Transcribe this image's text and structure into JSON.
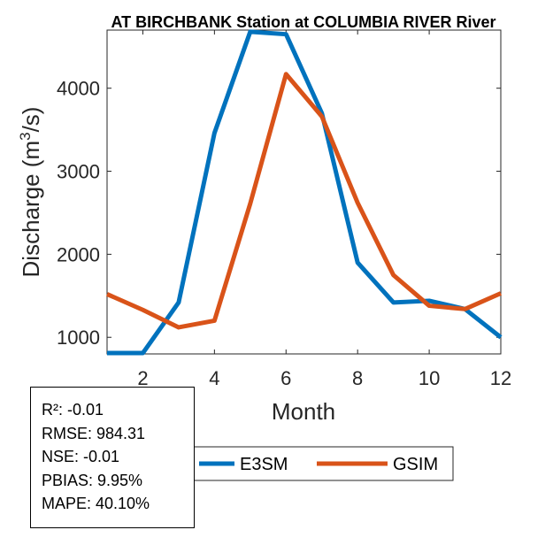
{
  "chart_data": {
    "type": "line",
    "title": "AT BIRCHBANK  Station at  COLUMBIA RIVER  River",
    "xlabel": "Month",
    "ylabel_main": "Discharge (m",
    "ylabel_sup": "3",
    "ylabel_tail": "/s)",
    "xlim": [
      1,
      12
    ],
    "ylim": [
      800,
      4700
    ],
    "x_ticks": [
      2,
      4,
      6,
      8,
      10,
      12
    ],
    "y_ticks": [
      1000,
      2000,
      3000,
      4000
    ],
    "x": [
      1,
      2,
      3,
      4,
      5,
      6,
      7,
      8,
      9,
      10,
      11,
      12
    ],
    "series": [
      {
        "name": "E3SM",
        "color": "#0072BD",
        "values": [
          810,
          810,
          1420,
          3460,
          4680,
          4650,
          3700,
          1900,
          1420,
          1440,
          1340,
          1000
        ]
      },
      {
        "name": "GSIM",
        "color": "#D95319",
        "values": [
          1520,
          1330,
          1120,
          1200,
          2610,
          4170,
          3660,
          2620,
          1750,
          1380,
          1340,
          1530
        ]
      }
    ],
    "grid": false,
    "legend_position": "bottom"
  },
  "stats": {
    "r2": "R²: -0.01",
    "rmse": "RMSE: 984.31",
    "nse": "NSE: -0.01",
    "pbias": "PBIAS: 9.95%",
    "mape": "MAPE: 40.10%"
  }
}
